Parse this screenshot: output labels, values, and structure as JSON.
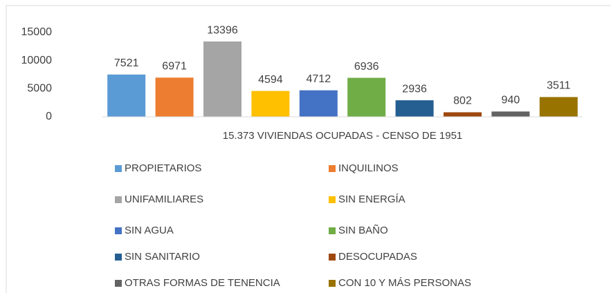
{
  "chart_data": {
    "type": "bar",
    "categories": [
      "15.373 VIVIENDAS OCUPADAS - CENSO DE 1951"
    ],
    "series": [
      {
        "name": "PROPIETARIOS",
        "color": "#5b9bd5",
        "values": [
          7521
        ]
      },
      {
        "name": "INQUILINOS",
        "color": "#ed7d31",
        "values": [
          6971
        ]
      },
      {
        "name": "UNIFAMILIARES",
        "color": "#a5a5a5",
        "values": [
          13396
        ]
      },
      {
        "name": "SIN ENERGÍA",
        "color": "#ffc000",
        "values": [
          4594
        ]
      },
      {
        "name": "SIN AGUA",
        "color": "#4472c4",
        "values": [
          4712
        ]
      },
      {
        "name": "SIN BAÑO",
        "color": "#70ad47",
        "values": [
          6936
        ]
      },
      {
        "name": "SIN SANITARIO",
        "color": "#255e91",
        "values": [
          2936
        ]
      },
      {
        "name": "DESOCUPADAS",
        "color": "#9e480e",
        "values": [
          802
        ]
      },
      {
        "name": "OTRAS FORMAS DE TENENCIA",
        "color": "#636363",
        "values": [
          940
        ]
      },
      {
        "name": "CON 10 Y MÁS PERSONAS",
        "color": "#997300",
        "values": [
          3511
        ]
      }
    ],
    "ylim": [
      0,
      15000
    ],
    "yticks": [
      0,
      5000,
      10000,
      15000
    ],
    "grid": false,
    "legend": "bottom"
  }
}
